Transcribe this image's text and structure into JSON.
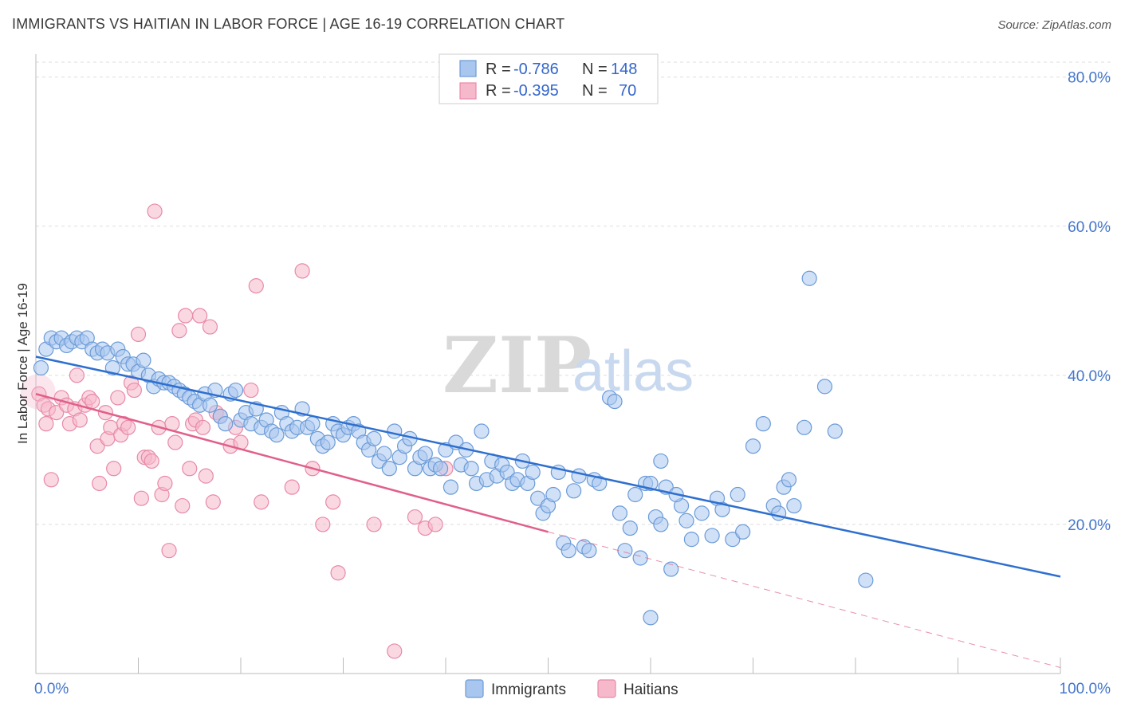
{
  "title": "IMMIGRANTS VS HAITIAN IN LABOR FORCE | AGE 16-19 CORRELATION CHART",
  "source": "Source: ZipAtlas.com",
  "watermark": {
    "zip": "ZIP",
    "atlas": "atlas"
  },
  "colors": {
    "immigrants_fill": "#a9c6ee",
    "immigrants_stroke": "#6a9bd8",
    "immigrants_line": "#2e6fcf",
    "haitians_fill": "#f6b8cb",
    "haitians_stroke": "#e889a8",
    "haitians_line": "#e0608a",
    "grid": "#dddddd",
    "tick_text": "#4477cc"
  },
  "legend": {
    "rows": [
      {
        "r_label": "R =",
        "r_value": "-0.786",
        "n_label": "N =",
        "n_value": "148"
      },
      {
        "r_label": "R =",
        "r_value": "-0.395",
        "n_label": "N =",
        "n_value": "70"
      }
    ]
  },
  "chart_data": {
    "type": "scatter",
    "title": "IMMIGRANTS VS HAITIAN IN LABOR FORCE | AGE 16-19 CORRELATION CHART",
    "xlabel": "",
    "ylabel": "In Labor Force | Age 16-19",
    "xlim": [
      0,
      100
    ],
    "ylim": [
      0,
      82
    ],
    "x_tick_labels": [
      "0.0%",
      "100.0%"
    ],
    "y_ticks": [
      20,
      40,
      60,
      80
    ],
    "y_tick_labels": [
      "20.0%",
      "40.0%",
      "60.0%",
      "80.0%"
    ],
    "grid": true,
    "legend_position": "top-center",
    "series": [
      {
        "name": "Immigrants",
        "r": -0.786,
        "n": 148,
        "trend": {
          "x0": 0,
          "y0": 42.5,
          "x1": 100,
          "y1": 13.0
        },
        "points": [
          [
            0.5,
            41
          ],
          [
            1,
            43.5
          ],
          [
            1.5,
            45
          ],
          [
            2,
            44.5
          ],
          [
            2.5,
            45
          ],
          [
            3,
            44
          ],
          [
            3.5,
            44.5
          ],
          [
            4,
            45
          ],
          [
            4.5,
            44.5
          ],
          [
            5,
            45
          ],
          [
            5.5,
            43.5
          ],
          [
            6,
            43
          ],
          [
            6.5,
            43.5
          ],
          [
            7,
            43
          ],
          [
            7.5,
            41
          ],
          [
            8,
            43.5
          ],
          [
            8.5,
            42.5
          ],
          [
            9,
            41.5
          ],
          [
            9.5,
            41.5
          ],
          [
            10,
            40.5
          ],
          [
            10.5,
            42
          ],
          [
            11,
            40
          ],
          [
            11.5,
            38.5
          ],
          [
            12,
            39.5
          ],
          [
            12.5,
            39
          ],
          [
            13,
            39
          ],
          [
            13.5,
            38.5
          ],
          [
            14,
            38
          ],
          [
            14.5,
            37.5
          ],
          [
            15,
            37
          ],
          [
            15.5,
            36.5
          ],
          [
            16,
            36
          ],
          [
            16.5,
            37.5
          ],
          [
            17,
            36
          ],
          [
            17.5,
            38
          ],
          [
            18,
            34.5
          ],
          [
            18.5,
            33.5
          ],
          [
            19,
            37.5
          ],
          [
            19.5,
            38
          ],
          [
            20,
            34
          ],
          [
            20.5,
            35
          ],
          [
            21,
            33.5
          ],
          [
            21.5,
            35.5
          ],
          [
            22,
            33
          ],
          [
            22.5,
            34
          ],
          [
            23,
            32.5
          ],
          [
            23.5,
            32
          ],
          [
            24,
            35
          ],
          [
            24.5,
            33.5
          ],
          [
            25,
            32.5
          ],
          [
            25.5,
            33
          ],
          [
            26,
            35.5
          ],
          [
            26.5,
            33
          ],
          [
            27,
            33.5
          ],
          [
            27.5,
            31.5
          ],
          [
            28,
            30.5
          ],
          [
            28.5,
            31
          ],
          [
            29,
            33.5
          ],
          [
            29.5,
            32.5
          ],
          [
            30,
            32
          ],
          [
            30.5,
            33
          ],
          [
            31,
            33.5
          ],
          [
            31.5,
            32.5
          ],
          [
            32,
            31
          ],
          [
            32.5,
            30
          ],
          [
            33,
            31.5
          ],
          [
            33.5,
            28.5
          ],
          [
            34,
            29.5
          ],
          [
            34.5,
            27.5
          ],
          [
            35,
            32.5
          ],
          [
            35.5,
            29
          ],
          [
            36,
            30.5
          ],
          [
            36.5,
            31.5
          ],
          [
            37,
            27.5
          ],
          [
            37.5,
            29
          ],
          [
            38,
            29.5
          ],
          [
            38.5,
            27.5
          ],
          [
            39,
            28
          ],
          [
            39.5,
            27.5
          ],
          [
            40,
            30
          ],
          [
            40.5,
            25
          ],
          [
            41,
            31
          ],
          [
            41.5,
            28
          ],
          [
            42,
            30
          ],
          [
            42.5,
            27.5
          ],
          [
            43,
            25.5
          ],
          [
            43.5,
            32.5
          ],
          [
            44,
            26
          ],
          [
            44.5,
            28.5
          ],
          [
            45,
            26.5
          ],
          [
            45.5,
            28
          ],
          [
            46,
            27
          ],
          [
            46.5,
            25.5
          ],
          [
            47,
            26
          ],
          [
            47.5,
            28.5
          ],
          [
            48,
            25.5
          ],
          [
            48.5,
            27
          ],
          [
            49,
            23.5
          ],
          [
            49.5,
            21.5
          ],
          [
            50,
            22.5
          ],
          [
            50.5,
            24
          ],
          [
            51,
            27
          ],
          [
            51.5,
            17.5
          ],
          [
            52,
            16.5
          ],
          [
            52.5,
            24.5
          ],
          [
            53,
            26.5
          ],
          [
            53.5,
            17
          ],
          [
            54,
            16.5
          ],
          [
            54.5,
            26
          ],
          [
            55,
            25.5
          ],
          [
            56,
            37
          ],
          [
            56.5,
            36.5
          ],
          [
            57,
            21.5
          ],
          [
            57.5,
            16.5
          ],
          [
            58,
            19.5
          ],
          [
            58.5,
            24
          ],
          [
            59,
            15.5
          ],
          [
            59.5,
            25.5
          ],
          [
            60,
            25.5
          ],
          [
            60.5,
            21
          ],
          [
            61,
            28.5
          ],
          [
            61.5,
            25
          ],
          [
            62,
            14
          ],
          [
            63,
            22.5
          ],
          [
            64,
            18
          ],
          [
            66,
            18.5
          ],
          [
            66.5,
            23.5
          ],
          [
            68,
            18
          ],
          [
            68.5,
            24
          ],
          [
            70,
            30.5
          ],
          [
            71,
            33.5
          ],
          [
            72,
            22.5
          ],
          [
            73,
            25
          ],
          [
            73.5,
            26
          ],
          [
            74,
            22.5
          ],
          [
            75,
            33
          ],
          [
            75.5,
            53
          ],
          [
            77,
            38.5
          ],
          [
            78,
            32.5
          ],
          [
            81,
            12.5
          ],
          [
            60,
            7.5
          ],
          [
            61,
            20
          ],
          [
            62.5,
            24
          ],
          [
            63.5,
            20.5
          ],
          [
            65,
            21.5
          ],
          [
            67,
            22
          ],
          [
            69,
            19
          ],
          [
            72.5,
            21.5
          ]
        ]
      },
      {
        "name": "Haitians",
        "r": -0.395,
        "n": 70,
        "trend": {
          "x0": 0,
          "y0": 37.5,
          "x1": 50,
          "y1": 19.0,
          "dash_to_x": 100,
          "dash_to_y": 0.8
        },
        "points": [
          [
            0.3,
            37.5
          ],
          [
            0.8,
            36
          ],
          [
            1,
            33.5
          ],
          [
            1.2,
            35.5
          ],
          [
            1.5,
            26
          ],
          [
            2,
            35
          ],
          [
            2.5,
            37
          ],
          [
            3,
            36
          ],
          [
            3.3,
            33.5
          ],
          [
            3.8,
            35.5
          ],
          [
            4,
            40
          ],
          [
            4.3,
            34
          ],
          [
            4.8,
            36
          ],
          [
            5.2,
            37
          ],
          [
            5.5,
            36.5
          ],
          [
            6,
            30.5
          ],
          [
            6.2,
            25.5
          ],
          [
            6.8,
            35
          ],
          [
            7,
            31.5
          ],
          [
            7.3,
            33
          ],
          [
            7.6,
            27.5
          ],
          [
            8,
            37
          ],
          [
            8.3,
            32
          ],
          [
            8.6,
            33.5
          ],
          [
            9,
            33
          ],
          [
            9.3,
            39
          ],
          [
            9.6,
            38
          ],
          [
            10,
            45.5
          ],
          [
            10.3,
            23.5
          ],
          [
            10.6,
            29
          ],
          [
            11,
            29
          ],
          [
            11.3,
            28.5
          ],
          [
            11.6,
            62
          ],
          [
            12,
            33
          ],
          [
            12.3,
            24
          ],
          [
            12.6,
            25.5
          ],
          [
            13,
            16.5
          ],
          [
            13.3,
            33.5
          ],
          [
            13.6,
            31
          ],
          [
            14,
            46
          ],
          [
            14.3,
            22.5
          ],
          [
            14.6,
            48
          ],
          [
            15,
            27.5
          ],
          [
            15.3,
            33.5
          ],
          [
            15.6,
            34
          ],
          [
            16,
            48
          ],
          [
            16.3,
            33
          ],
          [
            16.6,
            26.5
          ],
          [
            17,
            46.5
          ],
          [
            17.3,
            23
          ],
          [
            17.6,
            35
          ],
          [
            18,
            34.5
          ],
          [
            19,
            30.5
          ],
          [
            19.5,
            33
          ],
          [
            20,
            31
          ],
          [
            21,
            38
          ],
          [
            21.5,
            52
          ],
          [
            22,
            23
          ],
          [
            26,
            54
          ],
          [
            27,
            27.5
          ],
          [
            28,
            20
          ],
          [
            29,
            23
          ],
          [
            29.5,
            13.5
          ],
          [
            33,
            20
          ],
          [
            35,
            3
          ],
          [
            37,
            21
          ],
          [
            38,
            19.5
          ],
          [
            39,
            20
          ],
          [
            40,
            27.5
          ],
          [
            25,
            25
          ]
        ]
      }
    ]
  },
  "bottom_legend": [
    {
      "label": "Immigrants"
    },
    {
      "label": "Haitians"
    }
  ]
}
